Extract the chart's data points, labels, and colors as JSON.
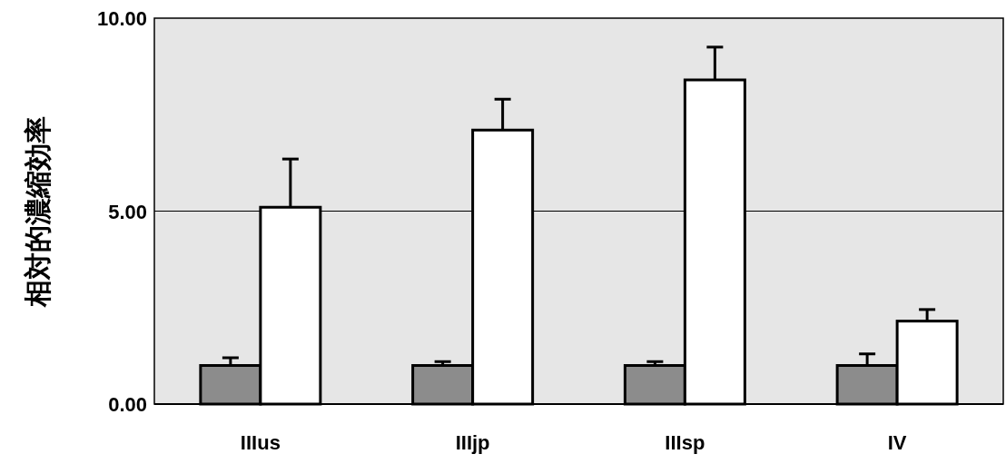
{
  "chart_data": {
    "type": "bar",
    "ylabel": "相対的濃縮効率",
    "categories": [
      "IIIus",
      "IIIjp",
      "IIIsp",
      "IV"
    ],
    "series": [
      {
        "color": "#8c8c8c",
        "values": [
          1.0,
          1.0,
          1.0,
          1.0
        ],
        "errors": [
          0.2,
          0.1,
          0.1,
          0.3
        ]
      },
      {
        "color": "#ffffff",
        "values": [
          5.1,
          7.1,
          8.4,
          2.15
        ],
        "errors": [
          1.25,
          0.8,
          0.85,
          0.3
        ]
      }
    ],
    "ylim": [
      0,
      10
    ],
    "yticks": [
      {
        "value": 0,
        "label": "0.00"
      },
      {
        "value": 5,
        "label": "5.00"
      },
      {
        "value": 10,
        "label": "10.00"
      }
    ],
    "grid": "y"
  }
}
